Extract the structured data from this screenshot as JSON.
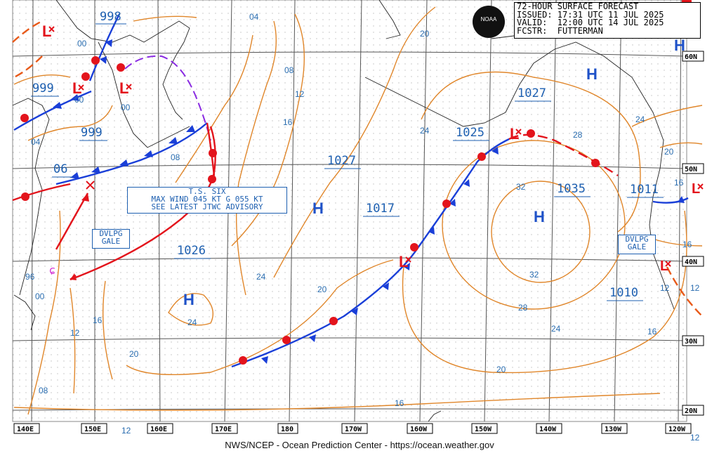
{
  "header": {
    "line1": "72-HOUR SURFACE FORECAST",
    "line2": "ISSUED: 17:31 UTC 11 JUL 2025",
    "line3": "VALID:  12:00 UTC 14 JUL 2025",
    "line4": "FCSTR:  FUTTERMAN"
  },
  "logo_text": "NOAA",
  "footer": "NWS/NCEP - Ocean Prediction Center - https://ocean.weather.gov",
  "advisory": {
    "line1": "T.S. SIX",
    "line2": "MAX WIND 045 KT G 055 KT",
    "line3": "SEE LATEST JTWC ADVISORY"
  },
  "gale_west": {
    "line1": "DVLPG",
    "line2": "GALE"
  },
  "gale_east": {
    "line1": "DVLPG",
    "line2": "GALE"
  },
  "pressures": {
    "p998": "998",
    "p999a": "999",
    "p999b": "999",
    "p06": "06",
    "p1026": "1026",
    "p1027a": "1027",
    "p1017": "1017",
    "p1025": "1025",
    "p1027b": "1027",
    "p1035": "1035",
    "p1011": "1011",
    "p1010": "1010"
  },
  "systems": {
    "high": "H",
    "low": "L"
  },
  "longitudes": [
    "140E",
    "150E",
    "160E",
    "170E",
    "180",
    "170W",
    "160W",
    "150W",
    "140W",
    "130W",
    "120W"
  ],
  "latitudes": [
    "60N",
    "50N",
    "40N",
    "30N",
    "20N"
  ],
  "isobar_labels": {
    "i04a": "04",
    "i00a": "00",
    "i00b": "00",
    "i00c": "00",
    "i04b": "04",
    "i08a": "08",
    "i08b": "08",
    "i12a": "12",
    "i16a": "16",
    "i20a": "20",
    "i24a": "24",
    "i24b": "24",
    "i28a": "28",
    "i32a": "32",
    "i32b": "32",
    "i28b": "28",
    "i24c": "24",
    "i20b": "20",
    "i16b": "16",
    "i16c": "16",
    "i16d": "16",
    "i12b": "12",
    "i12c": "12",
    "i12d": "12",
    "i12e": "12",
    "i08c": "08",
    "i20c": "20",
    "i24d": "24",
    "i20d": "20",
    "i16e": "16",
    "i96": "96",
    "i00d": "00",
    "i16f": "16",
    "i24e": "24"
  },
  "colors": {
    "isobar": "#e0862a",
    "cold_front": "#1a3fd8",
    "warm_front": "#e3141c",
    "trough": "#8a2be2",
    "text": "#1d5fb0"
  }
}
